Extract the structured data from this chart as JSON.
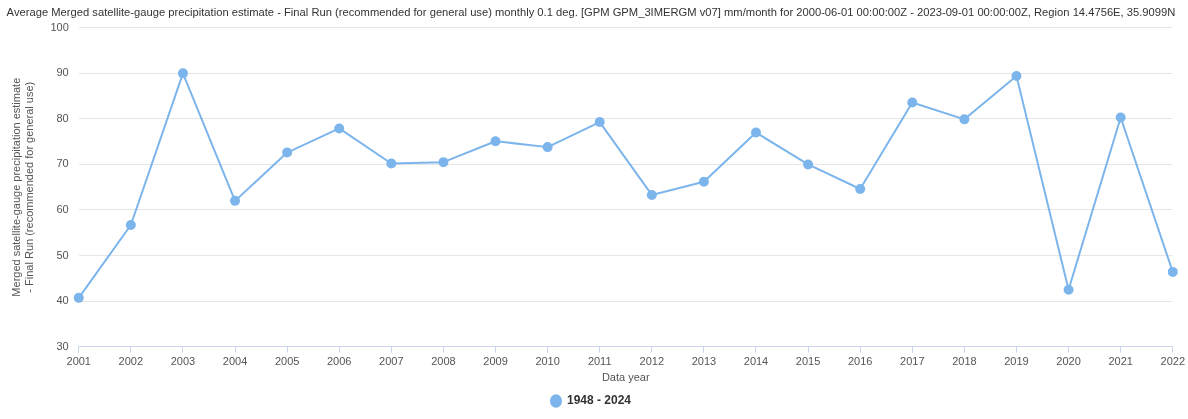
{
  "chart_data": {
    "type": "line",
    "title": "Average Merged satellite-gauge precipitation estimate - Final Run (recommended for general use) monthly 0.1 deg. [GPM GPM_3IMERGM v07] mm/month for 2000-06-01 00:00:00Z - 2023-09-01 00:00:00Z, Region 14.4756E, 35.9099N",
    "xlabel": "Data year",
    "ylabel": "Merged satellite-gauge precipitation estimate - Final Run (recommended for general use)",
    "categories": [
      "2001",
      "2002",
      "2003",
      "2004",
      "2005",
      "2006",
      "2007",
      "2008",
      "2009",
      "2010",
      "2011",
      "2012",
      "2013",
      "2014",
      "2015",
      "2016",
      "2017",
      "2018",
      "2019",
      "2020",
      "2021",
      "2022"
    ],
    "series": [
      {
        "name": "1948 - 2024",
        "color": "#7cb5ec",
        "values": [
          40.7,
          56.7,
          90,
          62,
          72.6,
          77.9,
          70.2,
          70.5,
          75.1,
          73.8,
          79.3,
          63.3,
          66.2,
          77,
          70,
          64.6,
          83.6,
          79.9,
          89.4,
          42.5,
          80.3,
          46.4
        ]
      }
    ],
    "ylim": [
      30,
      100
    ],
    "yticks": [
      30,
      40,
      50,
      60,
      70,
      80,
      90,
      100
    ],
    "grid": "y",
    "legend": "bottom",
    "marker": "circle",
    "line_style": "solid"
  }
}
